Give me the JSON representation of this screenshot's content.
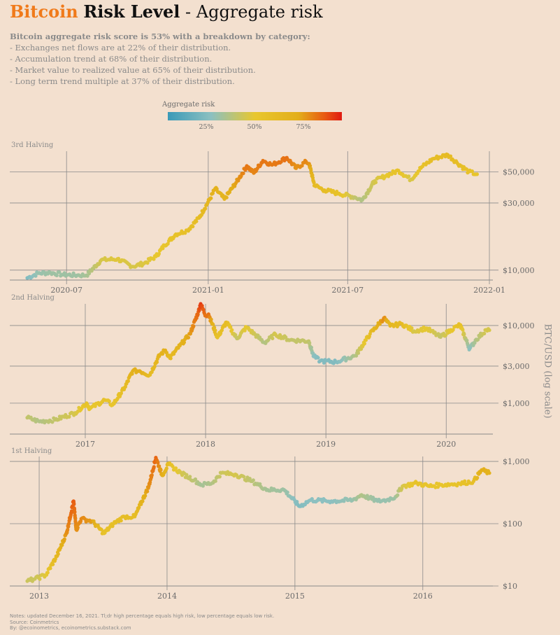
{
  "header": {
    "title_part1": "Bitcoin",
    "title_part2": "Risk Level",
    "title_part3": " - Aggregate risk"
  },
  "summary": {
    "headline": "Bitcoin aggregate risk score is 53% with a breakdown by category:",
    "lines": [
      "- Exchanges net flows are at 22% of their distribution.",
      "- Accumulation trend at 68% of their distribution.",
      "- Market value to realized value at 65% of their distribution.",
      "- Long term trend multiple at 37% of their distribution."
    ]
  },
  "legend": {
    "title": "Aggregate risk",
    "ticks": [
      "25%",
      "50%",
      "75%"
    ],
    "colors": [
      "#3a9ab8",
      "#8cc0c0",
      "#e8c72e",
      "#e3ae1a",
      "#e85a12",
      "#e01a12"
    ]
  },
  "y_axis_label": "BTC/USD (log scale)",
  "notes": [
    "Notes: updated December 16, 2021. Tl;dr high percentage equals high risk, low percentage equals low risk.",
    "Source: Coinmetrics",
    "By: @ecoinometrics, ecoinometrics.substack.com"
  ],
  "chart_data": [
    {
      "type": "scatter",
      "title": "3rd Halving",
      "y_scale": "log",
      "ylim": [
        8500,
        70000
      ],
      "yticks": [
        10000,
        30000,
        50000
      ],
      "ytick_labels": [
        "$10,000",
        "$30,000",
        "$50,000"
      ],
      "xticks": [
        "2020-07",
        "2021-01",
        "2021-07",
        "2022-01"
      ],
      "xlim": [
        "2020-05-11",
        "2022-01-01"
      ],
      "series": [
        {
          "x": [
            "2020-05-11",
            "2020-05-25",
            "2020-06-10",
            "2020-06-25",
            "2020-07-15",
            "2020-07-27",
            "2020-08-15",
            "2020-09-05",
            "2020-09-25",
            "2020-10-10",
            "2020-10-25",
            "2020-11-05",
            "2020-11-20",
            "2020-12-05",
            "2020-12-20",
            "2021-01-03",
            "2021-01-10",
            "2021-01-22",
            "2021-02-10",
            "2021-02-20",
            "2021-03-01",
            "2021-03-13",
            "2021-03-25",
            "2021-04-13",
            "2021-04-25",
            "2021-05-08",
            "2021-05-12",
            "2021-05-19",
            "2021-06-01",
            "2021-06-20",
            "2021-07-10",
            "2021-07-20",
            "2021-08-05",
            "2021-08-20",
            "2021-09-05",
            "2021-09-21",
            "2021-10-05",
            "2021-10-20",
            "2021-11-08",
            "2021-11-20",
            "2021-12-05",
            "2021-12-16"
          ],
          "y": [
            8800,
            9500,
            9600,
            9300,
            9200,
            9200,
            11800,
            12000,
            10600,
            11200,
            12500,
            15000,
            18000,
            19200,
            23500,
            32000,
            38000,
            32000,
            45000,
            55000,
            49000,
            60000,
            56000,
            63000,
            53000,
            59000,
            57000,
            40000,
            37000,
            35000,
            33000,
            31500,
            43000,
            47000,
            51000,
            44000,
            54000,
            62000,
            66000,
            58000,
            50000,
            48000
          ],
          "risk": [
            0.22,
            0.28,
            0.3,
            0.3,
            0.3,
            0.32,
            0.45,
            0.48,
            0.45,
            0.47,
            0.5,
            0.52,
            0.55,
            0.58,
            0.6,
            0.68,
            0.72,
            0.68,
            0.8,
            0.85,
            0.82,
            0.85,
            0.84,
            0.86,
            0.8,
            0.82,
            0.8,
            0.62,
            0.6,
            0.55,
            0.4,
            0.35,
            0.45,
            0.5,
            0.55,
            0.45,
            0.55,
            0.6,
            0.62,
            0.6,
            0.56,
            0.53
          ]
        }
      ]
    },
    {
      "type": "scatter",
      "title": "2nd Halving",
      "y_scale": "log",
      "ylim": [
        400,
        19000
      ],
      "yticks": [
        1000,
        3000,
        10000
      ],
      "ytick_labels": [
        "$1,000",
        "$3,000",
        "$10,000"
      ],
      "xticks": [
        "2017",
        "2018",
        "2019",
        "2020"
      ],
      "xlim": [
        "2016-07-09",
        "2020-05-11"
      ],
      "series": [
        {
          "x": [
            "2016-07-09",
            "2016-08-15",
            "2016-10-01",
            "2016-12-01",
            "2017-01-05",
            "2017-01-15",
            "2017-03-01",
            "2017-03-25",
            "2017-05-01",
            "2017-05-25",
            "2017-06-15",
            "2017-07-15",
            "2017-08-15",
            "2017-09-01",
            "2017-09-15",
            "2017-10-15",
            "2017-11-15",
            "2017-12-10",
            "2017-12-17",
            "2018-01-01",
            "2018-01-10",
            "2018-02-06",
            "2018-03-05",
            "2018-04-06",
            "2018-05-05",
            "2018-06-29",
            "2018-08-01",
            "2018-09-15",
            "2018-11-10",
            "2018-11-25",
            "2018-12-15",
            "2019-02-01",
            "2019-04-01",
            "2019-05-15",
            "2019-06-26",
            "2019-07-15",
            "2019-08-20",
            "2019-09-25",
            "2019-11-01",
            "2019-12-15",
            "2020-01-15",
            "2020-02-12",
            "2020-03-12",
            "2020-04-01",
            "2020-05-01",
            "2020-05-11"
          ],
          "y": [
            650,
            580,
            610,
            750,
            1000,
            850,
            1100,
            950,
            1600,
            2600,
            2600,
            2300,
            4200,
            4800,
            3800,
            5500,
            7800,
            15000,
            19000,
            13500,
            14000,
            7000,
            11000,
            6800,
            9500,
            6000,
            7700,
            6500,
            6300,
            4000,
            3500,
            3400,
            4100,
            7800,
            12500,
            9900,
            10500,
            8500,
            9200,
            7100,
            8800,
            10200,
            5000,
            6600,
            8800,
            8700
          ],
          "risk": [
            0.4,
            0.35,
            0.4,
            0.45,
            0.55,
            0.5,
            0.55,
            0.52,
            0.6,
            0.72,
            0.75,
            0.6,
            0.7,
            0.72,
            0.62,
            0.7,
            0.78,
            0.88,
            0.95,
            0.85,
            0.86,
            0.55,
            0.62,
            0.4,
            0.5,
            0.35,
            0.45,
            0.4,
            0.4,
            0.25,
            0.22,
            0.22,
            0.35,
            0.6,
            0.82,
            0.65,
            0.62,
            0.45,
            0.5,
            0.4,
            0.5,
            0.58,
            0.25,
            0.35,
            0.45,
            0.45
          ]
        }
      ]
    },
    {
      "type": "scatter",
      "title": "1st Halving",
      "y_scale": "log",
      "ylim": [
        10,
        1200
      ],
      "yticks": [
        10,
        100,
        1000
      ],
      "ytick_labels": [
        "$10",
        "$100",
        "$1,000"
      ],
      "xticks": [
        "2013",
        "2014",
        "2015",
        "2016"
      ],
      "xlim": [
        "2012-11-28",
        "2016-07-09"
      ],
      "series": [
        {
          "x": [
            "2012-11-28",
            "2012-12-20",
            "2013-01-20",
            "2013-02-20",
            "2013-03-20",
            "2013-04-09",
            "2013-04-17",
            "2013-05-01",
            "2013-06-01",
            "2013-07-05",
            "2013-08-01",
            "2013-09-01",
            "2013-10-01",
            "2013-11-10",
            "2013-11-30",
            "2013-12-18",
            "2014-01-05",
            "2014-02-10",
            "2014-03-20",
            "2014-04-10",
            "2014-05-10",
            "2014-06-05",
            "2014-07-15",
            "2014-09-01",
            "2014-10-15",
            "2014-12-01",
            "2015-01-14",
            "2015-02-15",
            "2015-04-15",
            "2015-06-15",
            "2015-07-10",
            "2015-08-25",
            "2015-09-20",
            "2015-10-15",
            "2015-11-04",
            "2015-12-15",
            "2016-01-20",
            "2016-02-20",
            "2016-04-15",
            "2016-05-25",
            "2016-06-17",
            "2016-07-09"
          ],
          "y": [
            12,
            13,
            15,
            30,
            70,
            230,
            80,
            120,
            110,
            70,
            100,
            130,
            130,
            400,
            1150,
            600,
            900,
            650,
            500,
            420,
            450,
            650,
            620,
            480,
            350,
            350,
            190,
            240,
            230,
            240,
            290,
            230,
            240,
            270,
            400,
            450,
            400,
            420,
            440,
            480,
            730,
            650
          ],
          "risk": [
            0.42,
            0.42,
            0.48,
            0.65,
            0.8,
            0.9,
            0.8,
            0.82,
            0.78,
            0.55,
            0.58,
            0.6,
            0.6,
            0.8,
            0.88,
            0.75,
            0.6,
            0.45,
            0.38,
            0.32,
            0.35,
            0.42,
            0.45,
            0.38,
            0.32,
            0.3,
            0.22,
            0.25,
            0.25,
            0.28,
            0.35,
            0.28,
            0.28,
            0.3,
            0.45,
            0.55,
            0.52,
            0.52,
            0.55,
            0.58,
            0.75,
            0.7
          ]
        }
      ]
    }
  ]
}
